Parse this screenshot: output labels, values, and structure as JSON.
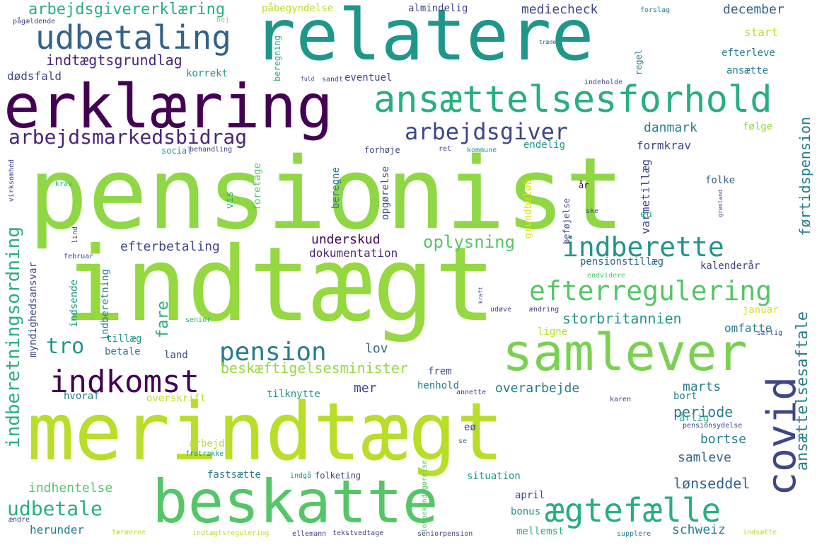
{
  "colors": {
    "background": "#ffffff",
    "palette": [
      "#440154",
      "#482677",
      "#3f4788",
      "#33638d",
      "#287d8e",
      "#1f968b",
      "#29af7f",
      "#55c667",
      "#95d840",
      "#b8de29",
      "#dce319"
    ]
  },
  "words": [
    {
      "text": "pensionist",
      "color": "#8fd744"
    },
    {
      "text": "indtægt",
      "color": "#95d840"
    },
    {
      "text": "merindtægt",
      "color": "#b8de29"
    },
    {
      "text": "relatere",
      "color": "#1f968b"
    },
    {
      "text": "erklæring",
      "color": "#440154"
    },
    {
      "text": "beskatte",
      "color": "#55c667"
    },
    {
      "text": "samlever",
      "color": "#7ad151"
    },
    {
      "text": "ansættelsesforhold",
      "color": "#29af7f"
    },
    {
      "text": "udbetaling",
      "color": "#33638d"
    },
    {
      "text": "efterregulering",
      "color": "#55c667"
    },
    {
      "text": "indkomst",
      "color": "#440154"
    },
    {
      "text": "ægtefælle",
      "color": "#29af7f"
    },
    {
      "text": "pension",
      "color": "#287d8e"
    },
    {
      "text": "covid",
      "color": "#3f4788"
    },
    {
      "text": "indberette",
      "color": "#1f968b"
    },
    {
      "text": "arbejdsgiver",
      "color": "#3f4788"
    },
    {
      "text": "arbejdsmarkedsbidrag",
      "color": "#482677"
    },
    {
      "text": "indberetningsordning",
      "color": "#29af7f"
    },
    {
      "text": "ansættelsesaftale",
      "color": "#287d8e"
    },
    {
      "text": "udbetale",
      "color": "#29af7f"
    },
    {
      "text": "indtægtsgrundlag",
      "color": "#482677"
    },
    {
      "text": "arbejdsgivererklæring",
      "color": "#29af7f"
    },
    {
      "text": "førtidspension",
      "color": "#287d8e"
    },
    {
      "text": "beskæftigelsesminister",
      "color": "#95d840"
    },
    {
      "text": "oplysning",
      "color": "#55c667"
    },
    {
      "text": "tro",
      "color": "#1f968b"
    },
    {
      "text": "storbritannien",
      "color": "#1f968b"
    },
    {
      "text": "efterbetaling",
      "color": "#3f4788"
    },
    {
      "text": "underskud",
      "color": "#440154"
    },
    {
      "text": "dokumentation",
      "color": "#482677"
    },
    {
      "text": "overarbejde",
      "color": "#287d8e"
    },
    {
      "text": "periode",
      "color": "#287d8e"
    },
    {
      "text": "lønseddel",
      "color": "#33638d"
    },
    {
      "text": "mediecheck",
      "color": "#3f4788"
    },
    {
      "text": "december",
      "color": "#33638d"
    },
    {
      "text": "danmark",
      "color": "#287d8e"
    },
    {
      "text": "formkrav",
      "color": "#3f4788"
    },
    {
      "text": "varmetillæg",
      "color": "#3f4788"
    },
    {
      "text": "fare",
      "color": "#29af7f"
    },
    {
      "text": "lov",
      "color": "#33638d"
    },
    {
      "text": "mer",
      "color": "#3f4788"
    },
    {
      "text": "marts",
      "color": "#287d8e"
    },
    {
      "text": "bortse",
      "color": "#287d8e"
    },
    {
      "text": "samleve",
      "color": "#33638d"
    },
    {
      "text": "schweiz",
      "color": "#287d8e"
    },
    {
      "text": "herunder",
      "color": "#287d8e"
    },
    {
      "text": "indhentelse",
      "color": "#55c667"
    },
    {
      "text": "dødsfald",
      "color": "#3f4788"
    },
    {
      "text": "korrekt",
      "color": "#1f968b"
    },
    {
      "text": "eventuel",
      "color": "#3f4788"
    },
    {
      "text": "start",
      "color": "#b8de29"
    },
    {
      "text": "efterleve",
      "color": "#287d8e"
    },
    {
      "text": "ansætte",
      "color": "#287d8e"
    },
    {
      "text": "almindelig",
      "color": "#3f4788"
    },
    {
      "text": "påbegyndelse",
      "color": "#b8de29"
    },
    {
      "text": "forslag",
      "color": "#287d8e"
    },
    {
      "text": "hej",
      "color": "#95d840"
    },
    {
      "text": "pågældende",
      "color": "#3f4788"
    },
    {
      "text": "træde",
      "color": "#33638d"
    },
    {
      "text": "regel",
      "color": "#287d8e"
    },
    {
      "text": "beregning",
      "color": "#29af7f"
    },
    {
      "text": "fuld",
      "color": "#3f4788"
    },
    {
      "text": "sandt",
      "color": "#3f4788"
    },
    {
      "text": "indeholde",
      "color": "#3f4788"
    },
    {
      "text": "følge",
      "color": "#95d840"
    },
    {
      "text": "endelig",
      "color": "#1f968b"
    },
    {
      "text": "social",
      "color": "#1f968b"
    },
    {
      "text": "behandling",
      "color": "#3f4788"
    },
    {
      "text": "forhøje",
      "color": "#3f4788"
    },
    {
      "text": "ret",
      "color": "#3f4788"
    },
    {
      "text": "kommune",
      "color": "#1f968b"
    },
    {
      "text": "virksomhed",
      "color": "#3f4788"
    },
    {
      "text": "krav",
      "color": "#29af7f"
    },
    {
      "text": "foretage",
      "color": "#55c667"
    },
    {
      "text": "vis",
      "color": "#29af7f"
    },
    {
      "text": "beregne",
      "color": "#287d8e"
    },
    {
      "text": "opgørelse",
      "color": "#3f4788"
    },
    {
      "text": "grundbeløb",
      "color": "#dce319"
    },
    {
      "text": "beføjelse",
      "color": "#3f4788"
    },
    {
      "text": "år",
      "color": "#440154"
    },
    {
      "text": "folke",
      "color": "#33638d"
    },
    {
      "text": "ske",
      "color": "#3f4788"
    },
    {
      "text": "grønland",
      "color": "#3f4788"
    },
    {
      "text": "eu",
      "color": "#29af7f"
    },
    {
      "text": "lind",
      "color": "#3f4788"
    },
    {
      "text": "februar",
      "color": "#3f4788"
    },
    {
      "text": "indberetning",
      "color": "#287d8e"
    },
    {
      "text": "myndighedsansvar",
      "color": "#3f4788"
    },
    {
      "text": "indsende",
      "color": "#1f968b"
    },
    {
      "text": "pensionstillæg",
      "color": "#33638d"
    },
    {
      "text": "kalenderår",
      "color": "#3f4788"
    },
    {
      "text": "endvidere",
      "color": "#55c667"
    },
    {
      "text": "kraft",
      "color": "#3f4788"
    },
    {
      "text": "ændring",
      "color": "#3f4788"
    },
    {
      "text": "udøve",
      "color": "#3f4788"
    },
    {
      "text": "januar",
      "color": "#dce319"
    },
    {
      "text": "ligne",
      "color": "#b8de29"
    },
    {
      "text": "omfatte",
      "color": "#287d8e"
    },
    {
      "text": "særlig",
      "color": "#3f4788"
    },
    {
      "text": "tillæg",
      "color": "#1f968b"
    },
    {
      "text": "betale",
      "color": "#287d8e"
    },
    {
      "text": "land",
      "color": "#3f4788"
    },
    {
      "text": "senior",
      "color": "#29af7f"
    },
    {
      "text": "frem",
      "color": "#3f4788"
    },
    {
      "text": "henhold",
      "color": "#287d8e"
    },
    {
      "text": "annette",
      "color": "#3f4788"
    },
    {
      "text": "karen",
      "color": "#3f4788"
    },
    {
      "text": "bort",
      "color": "#287d8e"
    },
    {
      "text": "hvoraf",
      "color": "#287d8e"
    },
    {
      "text": "tilknytte",
      "color": "#1f968b"
    },
    {
      "text": "overskrift",
      "color": "#b8de29"
    },
    {
      "text": "lovbekendtgørelse",
      "color": "#55c667"
    },
    {
      "text": "eø",
      "color": "#3f4788"
    },
    {
      "text": "se",
      "color": "#287d8e"
    },
    {
      "text": "pensionsydelse",
      "color": "#3f4788"
    },
    {
      "text": "årlig",
      "color": "#29af7f"
    },
    {
      "text": "arbejde",
      "color": "#b8de29"
    },
    {
      "text": "fratrække",
      "color": "#1f968b"
    },
    {
      "text": "fastsætte",
      "color": "#287d8e"
    },
    {
      "text": "indgå",
      "color": "#1f968b"
    },
    {
      "text": "folketing",
      "color": "#3f4788"
    },
    {
      "text": "situation",
      "color": "#1f968b"
    },
    {
      "text": "april",
      "color": "#3f4788"
    },
    {
      "text": "bonus",
      "color": "#1f968b"
    },
    {
      "text": "ændre",
      "color": "#3f4788"
    },
    {
      "text": "færøerne",
      "color": "#b8de29"
    },
    {
      "text": "indtægtsregulering",
      "color": "#b8de29"
    },
    {
      "text": "ellemann",
      "color": "#3f4788"
    },
    {
      "text": "tekstvedtage",
      "color": "#3f4788"
    },
    {
      "text": "seniorpension",
      "color": "#3f4788"
    },
    {
      "text": "mellemst",
      "color": "#29af7f"
    },
    {
      "text": "supplere",
      "color": "#287d8e"
    },
    {
      "text": "indsætte",
      "color": "#b8de29"
    }
  ]
}
